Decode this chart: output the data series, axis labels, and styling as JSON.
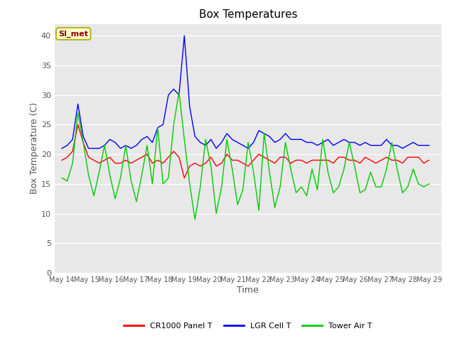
{
  "title": "Box Temperatures",
  "xlabel": "Time",
  "ylabel": "Box Temperature (C)",
  "annotation": "SI_met",
  "ylim": [
    0,
    42
  ],
  "yticks": [
    0,
    5,
    10,
    15,
    20,
    25,
    30,
    35,
    40
  ],
  "x_labels": [
    "May 14",
    "May 15",
    "May 16",
    "May 17",
    "May 18",
    "May 19",
    "May 20",
    "May 21",
    "May 22",
    "May 23",
    "May 24",
    "May 25",
    "May 26",
    "May 27",
    "May 28",
    "May 29"
  ],
  "bg_color": "#e0e0e0",
  "plot_bg_color": "#e8e8e8",
  "line_cr1000": "#ff0000",
  "line_lgr": "#0000ff",
  "line_tower": "#00cc00",
  "legend_labels": [
    "CR1000 Panel T",
    "LGR Cell T",
    "Tower Air T"
  ],
  "cr1000": [
    19.0,
    19.5,
    20.5,
    25.0,
    22.0,
    19.5,
    19.0,
    18.5,
    19.0,
    19.5,
    18.5,
    18.5,
    19.0,
    18.5,
    19.0,
    19.5,
    20.0,
    18.5,
    19.0,
    18.5,
    19.5,
    20.5,
    19.5,
    16.0,
    18.0,
    18.5,
    18.0,
    18.5,
    19.5,
    18.0,
    18.5,
    20.0,
    19.0,
    19.0,
    18.5,
    18.0,
    19.0,
    20.0,
    19.5,
    19.0,
    18.5,
    19.5,
    19.5,
    18.5,
    19.0,
    19.0,
    18.5,
    19.0,
    19.0,
    19.0,
    19.0,
    18.5,
    19.5,
    19.5,
    19.0,
    19.0,
    18.5,
    19.5,
    19.0,
    18.5,
    19.0,
    19.5,
    19.0,
    19.0,
    18.5,
    19.5,
    19.5,
    19.5,
    18.5,
    19.0
  ],
  "lgr": [
    21.0,
    21.5,
    22.5,
    28.5,
    23.0,
    21.0,
    21.0,
    21.0,
    21.5,
    22.5,
    22.0,
    21.0,
    21.5,
    21.0,
    21.5,
    22.5,
    23.0,
    22.0,
    24.5,
    25.0,
    30.0,
    31.0,
    30.0,
    40.0,
    28.0,
    23.0,
    22.0,
    21.5,
    22.5,
    21.0,
    22.0,
    23.5,
    22.5,
    22.0,
    21.5,
    21.0,
    22.0,
    24.0,
    23.5,
    23.0,
    22.0,
    22.5,
    23.5,
    22.5,
    22.5,
    22.5,
    22.0,
    22.0,
    21.5,
    22.0,
    22.5,
    21.5,
    22.0,
    22.5,
    22.0,
    22.0,
    21.5,
    22.0,
    21.5,
    21.5,
    21.5,
    22.5,
    21.5,
    21.5,
    21.0,
    21.5,
    22.0,
    21.5,
    21.5,
    21.5
  ],
  "tower": [
    16.0,
    15.5,
    18.5,
    27.0,
    22.0,
    16.5,
    13.0,
    17.0,
    21.5,
    16.5,
    12.5,
    16.0,
    21.5,
    15.5,
    12.0,
    16.5,
    21.5,
    15.0,
    24.5,
    15.0,
    16.0,
    25.0,
    30.5,
    22.5,
    15.0,
    9.0,
    14.5,
    22.5,
    18.0,
    10.0,
    14.5,
    22.5,
    17.5,
    11.5,
    14.0,
    22.0,
    17.0,
    10.5,
    23.5,
    17.0,
    11.0,
    14.5,
    22.0,
    17.5,
    13.5,
    14.5,
    13.0,
    17.5,
    14.0,
    22.5,
    17.0,
    13.5,
    14.5,
    17.5,
    22.0,
    18.0,
    13.5,
    14.0,
    17.0,
    14.5,
    14.5,
    17.5,
    22.0,
    17.5,
    13.5,
    14.5,
    17.5,
    15.0,
    14.5,
    15.0
  ]
}
